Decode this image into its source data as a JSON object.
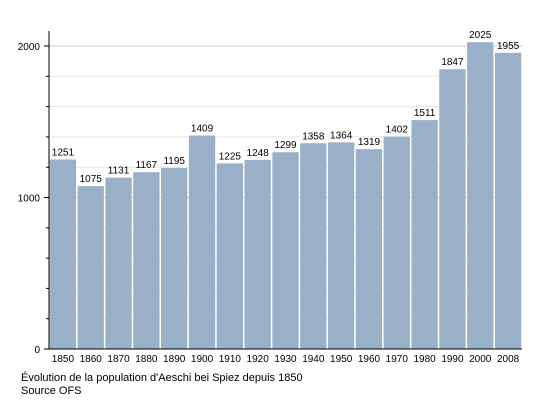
{
  "chart_data": {
    "type": "bar",
    "categories": [
      "1850",
      "1860",
      "1870",
      "1880",
      "1890",
      "1900",
      "1910",
      "1920",
      "1930",
      "1940",
      "1950",
      "1960",
      "1970",
      "1980",
      "1990",
      "2000",
      "2008"
    ],
    "values": [
      1251,
      1075,
      1131,
      1167,
      1195,
      1409,
      1225,
      1248,
      1299,
      1358,
      1364,
      1319,
      1402,
      1511,
      1847,
      2025,
      1955
    ],
    "data_labels": [
      "1251",
      "1075",
      "1131",
      "1167",
      "1195",
      "1409",
      "1225",
      "1248",
      "1299",
      "1358",
      "1364",
      "1319",
      "1402",
      "1511",
      "1847",
      "2025",
      "1955"
    ],
    "ylim": [
      0,
      2000
    ],
    "y_ticks": [
      0,
      1000,
      2000
    ],
    "y_tick_labels": [
      "0",
      "1000",
      "2000"
    ],
    "grid": true,
    "bar_color": "#9ab0c8",
    "title": "",
    "xlabel": "",
    "ylabel": ""
  },
  "caption": {
    "line1": "Évolution de la population d'Aeschi bei Spiez depuis 1850",
    "line2": "Source OFS"
  }
}
